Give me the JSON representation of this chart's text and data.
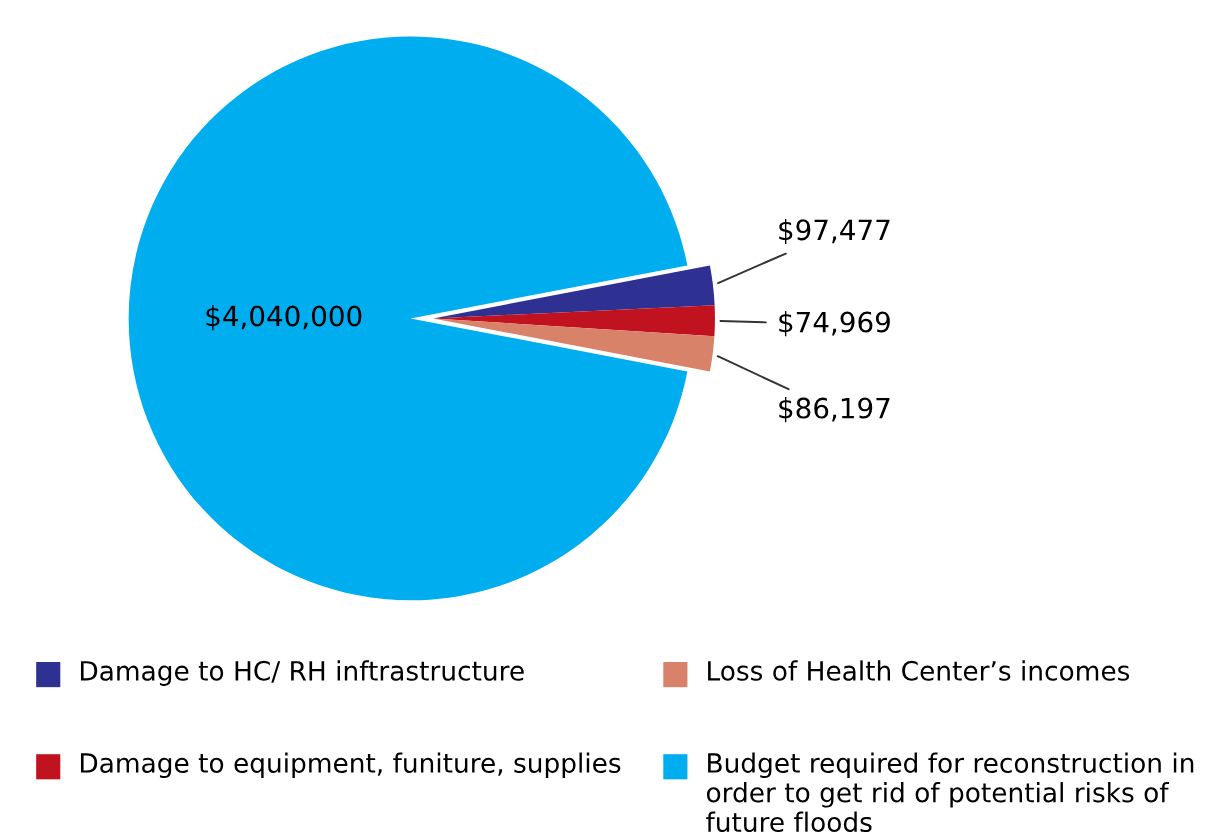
{
  "chart_data": {
    "type": "pie",
    "categories": [
      "Damage to HC/ RH inftrastructure",
      "Damage to equipment, funiture, supplies",
      "Loss of Health Center’s incomes",
      "Budget required for reconstruction in order to get rid of potential risks of future floods"
    ],
    "values": [
      97477,
      74969,
      86197,
      4040000
    ],
    "colors": [
      "#2e3192",
      "#c1121f",
      "#d9826a",
      "#00aeef"
    ],
    "value_labels": [
      "$97,477",
      "$74,969",
      "$86,197",
      "$4,040,000"
    ],
    "legend": "bottom"
  }
}
